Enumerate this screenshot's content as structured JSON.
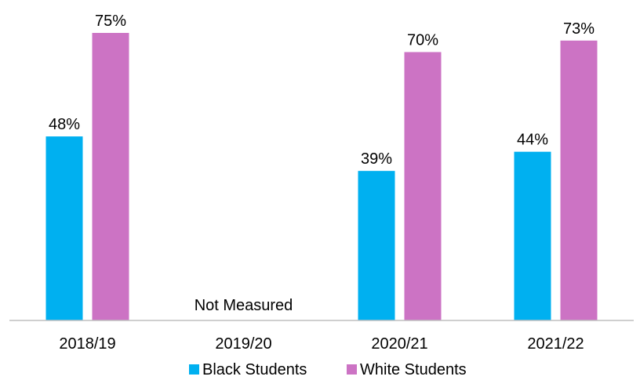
{
  "chart_data": {
    "type": "bar",
    "categories": [
      "2018/19",
      "2019/20",
      "2020/21",
      "2021/22"
    ],
    "series": [
      {
        "name": "Black Students",
        "color": "#00B0F0",
        "values": [
          48,
          null,
          39,
          44
        ],
        "labels": [
          "48%",
          "",
          "39%",
          "44%"
        ]
      },
      {
        "name": "White Students",
        "color": "#CC73C4",
        "values": [
          75,
          null,
          70,
          73
        ],
        "labels": [
          "75%",
          "",
          "70%",
          "73%"
        ]
      }
    ],
    "annotations": [
      {
        "category": "2019/20",
        "text": "Not Measured"
      }
    ],
    "ylim": [
      0,
      75
    ],
    "grid": false,
    "legend": "bottom"
  }
}
